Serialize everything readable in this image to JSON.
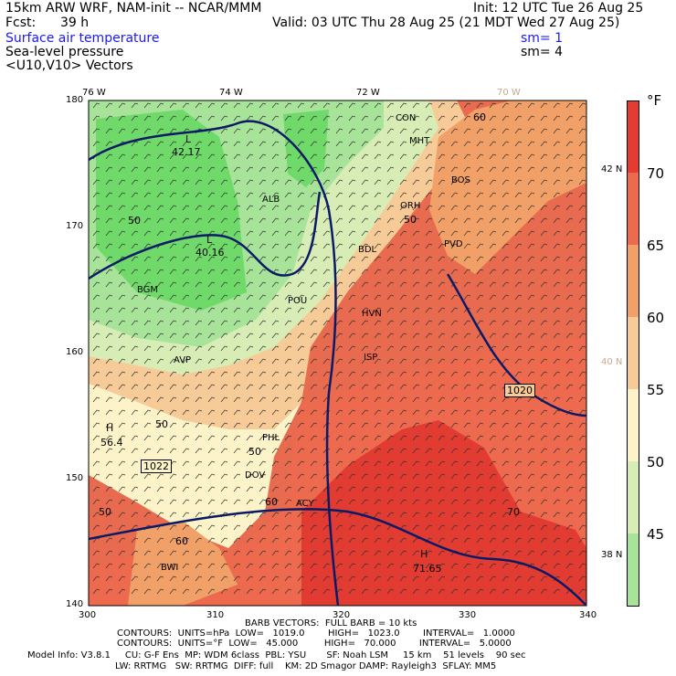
{
  "header": {
    "model_title": "15km ARW WRF, NAM-init -- NCAR/MMM",
    "fcst_label": "Fcst:",
    "fcst_value": "39 h",
    "init": "Init: 12 UTC Tue 26 Aug 25",
    "valid": "Valid: 03 UTC Thu 28 Aug 25 (21 MDT Wed 27 Aug 25)",
    "fields": [
      {
        "name": "Surface air temperature",
        "sm": "sm= 1",
        "color": "#1a1aff"
      },
      {
        "name": "Sea-level pressure",
        "sm": "sm= 4",
        "color": "#000000"
      },
      {
        "name": "<U10,V10> Vectors",
        "sm": "",
        "color": "#000000"
      }
    ]
  },
  "map": {
    "lon_labels": [
      "76 W",
      "74 W",
      "72 W",
      "70 W"
    ],
    "lat_labels": [
      "42 N",
      "40 N",
      "38 N"
    ],
    "x_ticks": [
      "300",
      "310",
      "320",
      "330",
      "340"
    ],
    "y_ticks": [
      "180",
      "170",
      "160",
      "150",
      "140"
    ],
    "cities": [
      "CON",
      "MHT",
      "BOS",
      "ALB",
      "ORH",
      "PVD",
      "BDL",
      "BGM",
      "POU",
      "HVN",
      "AVP",
      "ISP",
      "PHL",
      "DOV",
      "ACY",
      "BWI"
    ],
    "temp_labels": [
      "60",
      "50",
      "50",
      "50",
      "60",
      "60",
      "70",
      "50",
      "50"
    ],
    "pressure_labels": [
      "1020",
      "1022"
    ],
    "highs": [
      {
        "symbol": "H",
        "value": "56.4"
      },
      {
        "symbol": "H",
        "value": "71.65"
      }
    ],
    "lows": [
      {
        "symbol": "L",
        "value": "42.17"
      },
      {
        "symbol": "L",
        "value": "40.16"
      }
    ]
  },
  "colorbar": {
    "unit": "°F",
    "labels": [
      "70",
      "65",
      "60",
      "55",
      "50",
      "45"
    ],
    "bands": [
      "#e53b30",
      "#ee6a4e",
      "#f1a068",
      "#f6cb98",
      "#fdf3c8",
      "#d7edb5",
      "#a8e39a",
      "#6fd96a"
    ]
  },
  "footer": {
    "barb_line": "BARB VECTORS:  FULL BARB = 10 kts",
    "contours_p": "CONTOURS:  UNITS=hPa  LOW=   1019.0        HIGH=   1023.0        INTERVAL=   1.0000",
    "contours_t": "CONTOURS:  UNITS=°F  LOW=   45.000         HIGH=   70.000        INTERVAL=   5.0000",
    "model_info": "Model Info: V3.8.1     CU: G-F Ens  MP: WDM 6class  PBL: YSU       SF: Noah LSM     15 km    51 levels    90 sec",
    "model_info2": "LW: RRTMG   SW: RRTMG  DIFF: full    KM: 2D Smagor DAMP: Rayleigh3  SFLAY: MM5"
  }
}
